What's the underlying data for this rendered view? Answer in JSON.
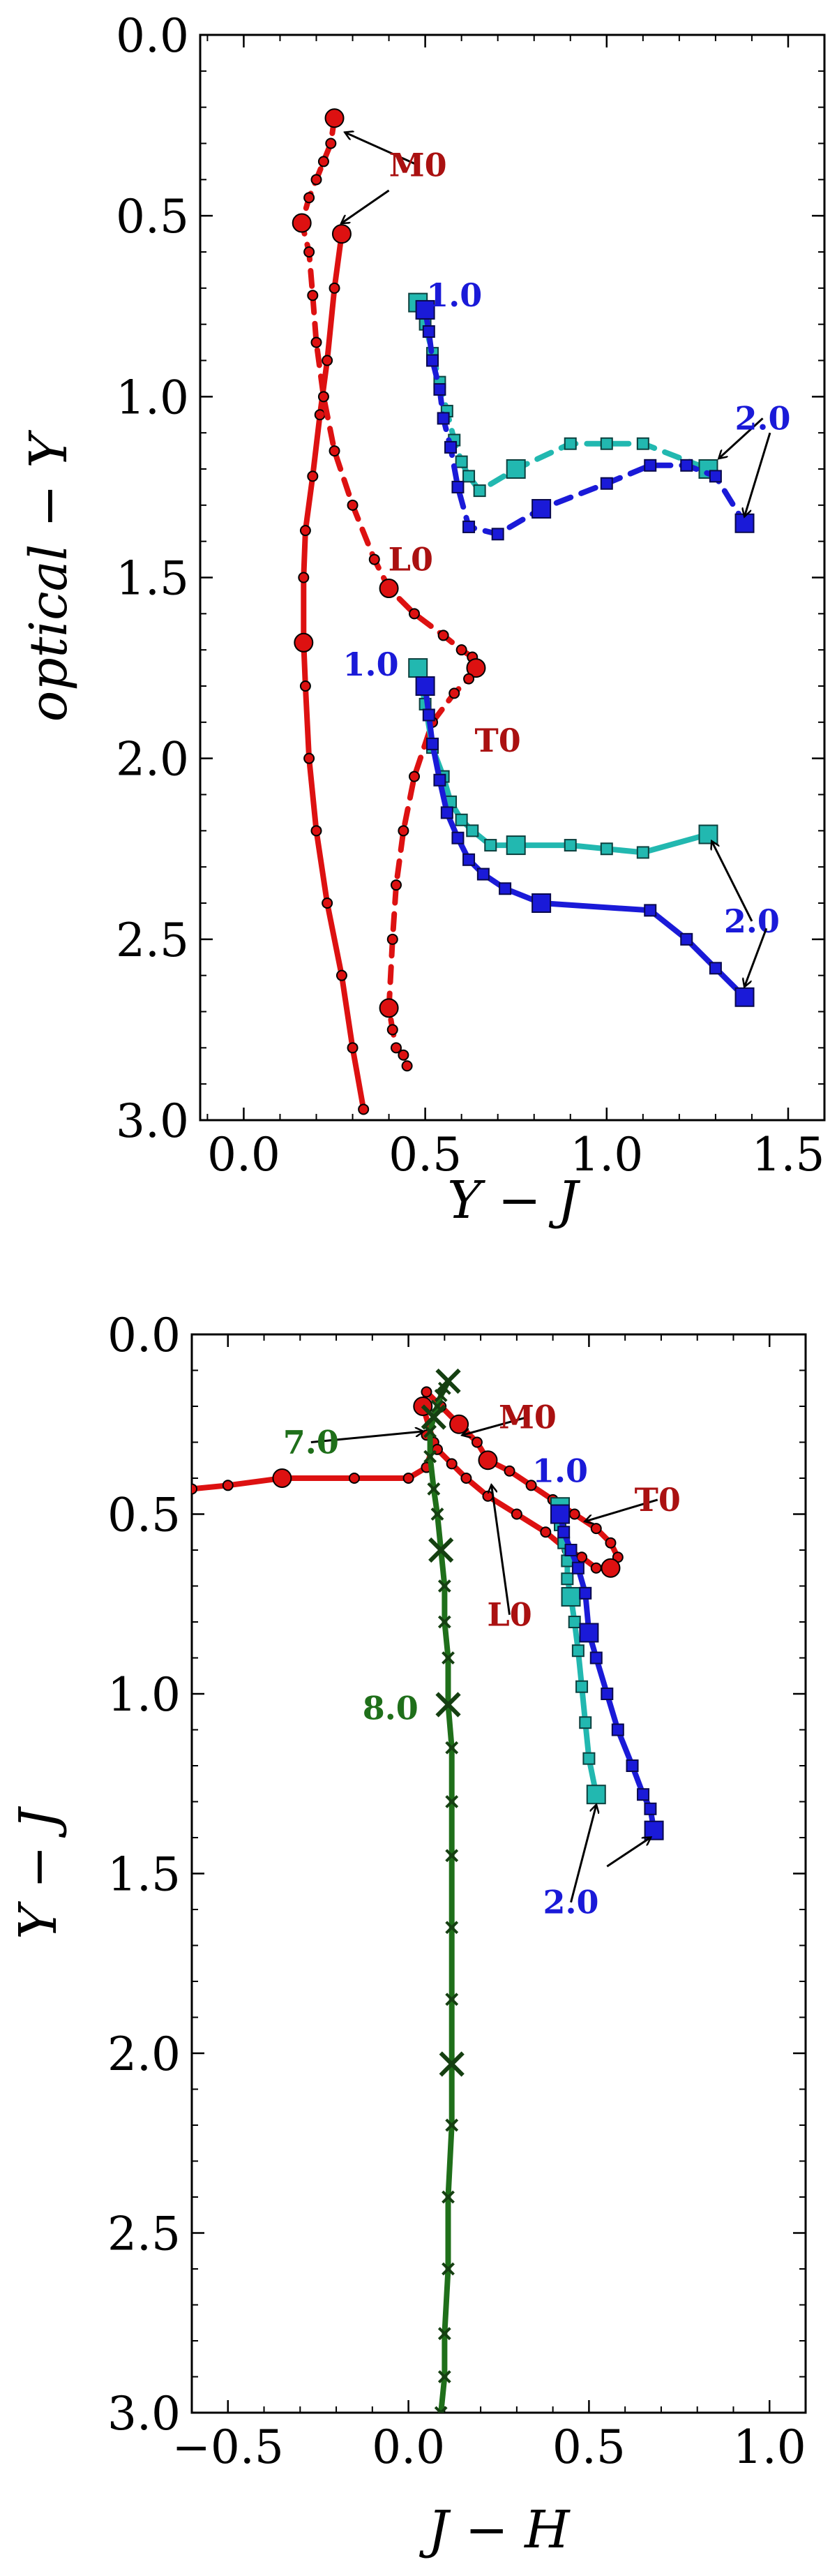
{
  "chart_data": [
    {
      "type": "line",
      "xlabel": "Y − J",
      "ylabel": "optical − Y",
      "xlim": [
        -0.12,
        1.6
      ],
      "ylim": [
        3.0,
        0.0
      ],
      "xticks": [
        0.0,
        0.5,
        1.0,
        1.5
      ],
      "yticks": [
        0.0,
        0.5,
        1.0,
        1.5,
        2.0,
        2.5,
        3.0
      ],
      "xtick_labels": [
        "0.0",
        "0.5",
        "1.0",
        "1.5"
      ],
      "ytick_labels": [
        "0.0",
        "0.5",
        "1.0",
        "1.5",
        "2.0",
        "2.5",
        "3.0"
      ],
      "series": [
        {
          "name": "red-solid",
          "color": "#dd1111",
          "style": "solid",
          "x": [
            0.27,
            0.25,
            0.23,
            0.21,
            0.19,
            0.17,
            0.165,
            0.165,
            0.17,
            0.18,
            0.2,
            0.23,
            0.27,
            0.3,
            0.33
          ],
          "y": [
            0.55,
            0.7,
            0.9,
            1.05,
            1.22,
            1.37,
            1.5,
            1.68,
            1.8,
            2.0,
            2.2,
            2.4,
            2.6,
            2.8,
            2.97
          ],
          "markers": [
            1,
            0,
            0,
            0,
            0,
            0,
            0,
            1,
            0,
            0,
            0,
            0,
            0,
            0,
            0
          ]
        },
        {
          "name": "red-dashed",
          "color": "#dd1111",
          "style": "dashed",
          "x": [
            0.25,
            0.24,
            0.22,
            0.2,
            0.18,
            0.16,
            0.18,
            0.19,
            0.2,
            0.22,
            0.25,
            0.3,
            0.36,
            0.4,
            0.47,
            0.55,
            0.6,
            0.63,
            0.64,
            0.62,
            0.58,
            0.52,
            0.47,
            0.44,
            0.42,
            0.41,
            0.4,
            0.41,
            0.42,
            0.44,
            0.45
          ],
          "y": [
            0.23,
            0.3,
            0.35,
            0.4,
            0.45,
            0.52,
            0.6,
            0.72,
            0.85,
            1.0,
            1.15,
            1.3,
            1.45,
            1.53,
            1.6,
            1.66,
            1.7,
            1.72,
            1.75,
            1.78,
            1.82,
            1.9,
            2.05,
            2.2,
            2.35,
            2.5,
            2.69,
            2.75,
            2.8,
            2.82,
            2.85
          ],
          "markers": [
            1,
            0,
            0,
            0,
            0,
            1,
            0,
            0,
            0,
            0,
            0,
            0,
            0,
            1,
            0,
            0,
            0,
            0,
            1,
            0,
            0,
            0,
            0,
            0,
            0,
            0,
            1,
            0,
            0,
            0,
            0
          ]
        },
        {
          "name": "cyan-upper",
          "color": "#22b8b0",
          "style": "dashed",
          "x": [
            0.48,
            0.5,
            0.52,
            0.54,
            0.56,
            0.58,
            0.6,
            0.62,
            0.65,
            0.75,
            0.9,
            1.0,
            1.1,
            1.28
          ],
          "y": [
            0.74,
            0.8,
            0.88,
            0.96,
            1.04,
            1.12,
            1.18,
            1.22,
            1.26,
            1.2,
            1.13,
            1.13,
            1.13,
            1.2
          ],
          "markers": [
            1,
            0,
            0,
            0,
            0,
            0,
            0,
            0,
            0,
            1,
            0,
            0,
            0,
            1
          ]
        },
        {
          "name": "blue-upper",
          "color": "#1a1ad8",
          "style": "dashed",
          "x": [
            0.5,
            0.51,
            0.52,
            0.54,
            0.55,
            0.57,
            0.59,
            0.62,
            0.7,
            0.82,
            1.0,
            1.12,
            1.22,
            1.3,
            1.38
          ],
          "y": [
            0.76,
            0.82,
            0.9,
            0.98,
            1.06,
            1.14,
            1.25,
            1.36,
            1.38,
            1.31,
            1.24,
            1.19,
            1.19,
            1.22,
            1.35
          ],
          "markers": [
            1,
            0,
            0,
            0,
            0,
            0,
            0,
            0,
            0,
            1,
            0,
            0,
            0,
            0,
            1
          ]
        },
        {
          "name": "cyan-lower",
          "color": "#22b8b0",
          "style": "solid",
          "x": [
            0.48,
            0.5,
            0.52,
            0.55,
            0.57,
            0.6,
            0.63,
            0.68,
            0.75,
            0.9,
            1.0,
            1.1,
            1.28
          ],
          "y": [
            1.75,
            1.85,
            1.97,
            2.05,
            2.12,
            2.17,
            2.2,
            2.24,
            2.24,
            2.24,
            2.25,
            2.26,
            2.21
          ],
          "markers": [
            1,
            0,
            0,
            0,
            0,
            0,
            0,
            0,
            1,
            0,
            0,
            0,
            1
          ]
        },
        {
          "name": "blue-lower",
          "color": "#1a1ad8",
          "style": "solid",
          "x": [
            0.5,
            0.51,
            0.52,
            0.54,
            0.56,
            0.59,
            0.62,
            0.66,
            0.72,
            0.82,
            1.12,
            1.22,
            1.3,
            1.38
          ],
          "y": [
            1.8,
            1.88,
            1.96,
            2.06,
            2.15,
            2.22,
            2.28,
            2.32,
            2.36,
            2.4,
            2.42,
            2.5,
            2.58,
            2.66
          ],
          "markers": [
            1,
            0,
            0,
            0,
            0,
            0,
            0,
            0,
            0,
            1,
            0,
            0,
            0,
            1
          ]
        }
      ],
      "annotations": [
        {
          "text": "M0",
          "color": "#aa1111",
          "tx": 0.48,
          "ty": 0.36,
          "ax": 0.28,
          "ay": 0.27
        },
        {
          "text": "",
          "color": "#000000",
          "tx": 0.4,
          "ty": 0.43,
          "ax": 0.27,
          "ay": 0.52
        },
        {
          "text": "L0",
          "color": "#aa1111",
          "tx": 0.46,
          "ty": 1.45,
          "ax": null,
          "ay": null
        },
        {
          "text": "T0",
          "color": "#aa1111",
          "tx": 0.7,
          "ty": 1.95,
          "ax": null,
          "ay": null
        },
        {
          "text": "1.0",
          "color": "#1a1ad8",
          "tx": 0.58,
          "ty": 0.72,
          "ax": null,
          "ay": null
        },
        {
          "text": "2.0",
          "color": "#1a1ad8",
          "tx": 1.43,
          "ty": 1.06,
          "ax": 1.31,
          "ay": 1.17
        },
        {
          "text": "",
          "color": "#000000",
          "tx": 1.45,
          "ty": 1.1,
          "ax": 1.38,
          "ay": 1.33
        },
        {
          "text": "1.0",
          "color": "#1a1ad8",
          "tx": 0.35,
          "ty": 1.74,
          "ax": null,
          "ay": null
        },
        {
          "text": "2.0",
          "color": "#1a1ad8",
          "tx": 1.4,
          "ty": 2.45,
          "ax": 1.29,
          "ay": 2.23
        },
        {
          "text": "",
          "color": "#000000",
          "tx": 1.44,
          "ty": 2.47,
          "ax": 1.38,
          "ay": 2.63
        }
      ]
    },
    {
      "type": "line",
      "xlabel": "J − H",
      "ylabel": "Y − J",
      "xlim": [
        -0.6,
        1.1
      ],
      "ylim": [
        3.0,
        0.0
      ],
      "xticks": [
        -0.5,
        0.0,
        0.5,
        1.0
      ],
      "yticks": [
        0.0,
        0.5,
        1.0,
        1.5,
        2.0,
        2.5,
        3.0
      ],
      "xtick_labels": [
        "−0.5",
        "0.0",
        "0.5",
        "1.0"
      ],
      "ytick_labels": [
        "0.0",
        "0.5",
        "1.0",
        "1.5",
        "2.0",
        "2.5",
        "3.0"
      ],
      "series": [
        {
          "name": "red-track",
          "color": "#dd1111",
          "style": "solid",
          "x": [
            -0.6,
            -0.5,
            -0.35,
            -0.15,
            0.0,
            0.05,
            0.07,
            0.04,
            0.05,
            0.09,
            0.14,
            0.19,
            0.22,
            0.28,
            0.34,
            0.4,
            0.46,
            0.52,
            0.56,
            0.58,
            0.56,
            0.52,
            0.48,
            0.44,
            0.38,
            0.3,
            0.22,
            0.16,
            0.12,
            0.08,
            0.05
          ],
          "y": [
            0.43,
            0.42,
            0.4,
            0.4,
            0.4,
            0.37,
            0.3,
            0.2,
            0.16,
            0.2,
            0.25,
            0.3,
            0.35,
            0.38,
            0.42,
            0.46,
            0.5,
            0.54,
            0.58,
            0.62,
            0.65,
            0.65,
            0.62,
            0.6,
            0.55,
            0.5,
            0.45,
            0.4,
            0.36,
            0.32,
            0.28
          ],
          "markers": [
            0,
            0,
            1,
            0,
            0,
            0,
            0,
            1,
            0,
            0,
            1,
            0,
            1,
            0,
            0,
            0,
            0,
            0,
            0,
            0,
            1,
            0,
            0,
            0,
            0,
            0,
            0,
            0,
            0,
            0,
            0
          ]
        },
        {
          "name": "green-track",
          "color": "#1f6f1a",
          "style": "solid",
          "x": [
            0.11,
            0.1,
            0.09,
            0.08,
            0.07,
            0.06,
            0.06,
            0.07,
            0.08,
            0.09,
            0.1,
            0.1,
            0.11,
            0.11,
            0.12,
            0.12,
            0.12,
            0.12,
            0.12,
            0.12,
            0.12,
            0.11,
            0.11,
            0.1,
            0.1,
            0.09
          ],
          "y": [
            0.13,
            0.15,
            0.17,
            0.2,
            0.23,
            0.27,
            0.34,
            0.43,
            0.5,
            0.6,
            0.7,
            0.8,
            0.9,
            1.03,
            1.15,
            1.3,
            1.45,
            1.65,
            1.85,
            2.03,
            2.2,
            2.4,
            2.6,
            2.78,
            2.9,
            3.0
          ],
          "markers": [
            1,
            0,
            0,
            0,
            1,
            0,
            0,
            0,
            0,
            1,
            0,
            0,
            0,
            1,
            0,
            0,
            0,
            0,
            0,
            1,
            0,
            0,
            0,
            0,
            0,
            0
          ]
        },
        {
          "name": "cyan-track",
          "color": "#22b8b0",
          "style": "solid",
          "x": [
            0.42,
            0.42,
            0.43,
            0.44,
            0.44,
            0.45,
            0.46,
            0.47,
            0.48,
            0.49,
            0.5,
            0.52
          ],
          "y": [
            0.48,
            0.53,
            0.58,
            0.63,
            0.68,
            0.73,
            0.8,
            0.88,
            0.98,
            1.08,
            1.18,
            1.28
          ],
          "markers": [
            1,
            0,
            0,
            0,
            0,
            1,
            0,
            0,
            0,
            0,
            0,
            1
          ]
        },
        {
          "name": "blue-track",
          "color": "#1a1ad8",
          "style": "solid",
          "x": [
            0.42,
            0.43,
            0.45,
            0.47,
            0.49,
            0.5,
            0.52,
            0.55,
            0.58,
            0.62,
            0.65,
            0.67,
            0.68
          ],
          "y": [
            0.5,
            0.55,
            0.6,
            0.65,
            0.72,
            0.83,
            0.9,
            1.0,
            1.1,
            1.2,
            1.28,
            1.32,
            1.38
          ],
          "markers": [
            1,
            0,
            0,
            0,
            0,
            1,
            0,
            0,
            0,
            0,
            0,
            0,
            1
          ]
        }
      ],
      "annotations": [
        {
          "text": "M0",
          "color": "#aa1111",
          "tx": 0.33,
          "ty": 0.23,
          "ax": 0.15,
          "ay": 0.28
        },
        {
          "text": "7.0",
          "color": "#1f6f1a",
          "tx": -0.27,
          "ty": 0.3,
          "ax": 0.04,
          "ay": 0.27
        },
        {
          "text": "L0",
          "color": "#aa1111",
          "tx": 0.28,
          "ty": 0.78,
          "ax": 0.23,
          "ay": 0.42
        },
        {
          "text": "T0",
          "color": "#aa1111",
          "tx": 0.69,
          "ty": 0.46,
          "ax": 0.49,
          "ay": 0.52
        },
        {
          "text": "1.0",
          "color": "#1a1ad8",
          "tx": 0.42,
          "ty": 0.38,
          "ax": null,
          "ay": null
        },
        {
          "text": "8.0",
          "color": "#1f6f1a",
          "tx": -0.05,
          "ty": 1.04,
          "ax": null,
          "ay": null
        },
        {
          "text": "2.0",
          "color": "#1a1ad8",
          "tx": 0.45,
          "ty": 1.58,
          "ax": 0.52,
          "ay": 1.31
        },
        {
          "text": "",
          "color": "#000000",
          "tx": 0.55,
          "ty": 1.48,
          "ax": 0.67,
          "ay": 1.4
        }
      ]
    }
  ]
}
